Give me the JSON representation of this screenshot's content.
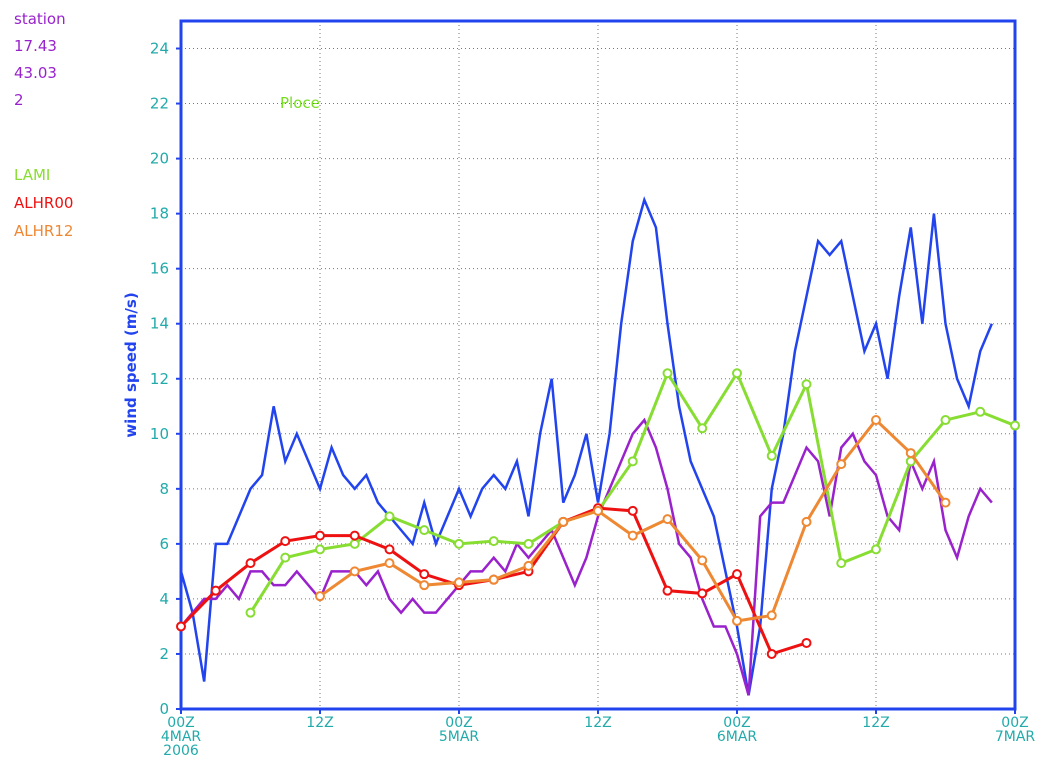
{
  "chart_data": {
    "type": "line",
    "title": "Ploce",
    "title_color": "#77dd22",
    "y_label": "wind speed (m/s)",
    "y_label_color": "#2244ee",
    "station_info": [
      "station",
      "17.43",
      "43.03",
      "2"
    ],
    "station_info_color": "#9922cc",
    "xlim": [
      0,
      72
    ],
    "xticks": [
      {
        "value": 0,
        "label": "00Z\n4MAR\n2006"
      },
      {
        "value": 12,
        "label": "12Z"
      },
      {
        "value": 24,
        "label": "00Z\n5MAR"
      },
      {
        "value": 36,
        "label": "12Z"
      },
      {
        "value": 48,
        "label": "00Z\n6MAR"
      },
      {
        "value": 60,
        "label": "12Z"
      },
      {
        "value": 72,
        "label": "00Z\n7MAR"
      }
    ],
    "ylim": [
      0,
      25
    ],
    "yticks": [
      0,
      2,
      4,
      6,
      8,
      10,
      12,
      14,
      16,
      18,
      20,
      22,
      24
    ],
    "grid": true,
    "series": [
      {
        "color": "#2244ee",
        "markers": false,
        "x": [
          0,
          1,
          2,
          3,
          4,
          5,
          6,
          7,
          8,
          9,
          10,
          11,
          12,
          13,
          14,
          15,
          16,
          17,
          18,
          19,
          20,
          21,
          22,
          23,
          24,
          25,
          26,
          27,
          28,
          29,
          30,
          31,
          32,
          33,
          34,
          35,
          36,
          37,
          38,
          39,
          40,
          41,
          42,
          43,
          44,
          45,
          46,
          47,
          48,
          49,
          50,
          51,
          52,
          53,
          54,
          55,
          56,
          57,
          58,
          59,
          60,
          61,
          62,
          63,
          64,
          65,
          66,
          67,
          68,
          69,
          70
        ],
        "values": [
          5,
          3.5,
          1,
          6,
          6,
          7,
          8,
          8.5,
          11,
          9,
          10,
          9,
          8,
          9.5,
          8.5,
          8,
          8.5,
          7.5,
          7,
          6.5,
          6,
          7.5,
          6,
          7,
          8,
          7,
          8,
          8.5,
          8,
          9,
          7,
          10,
          12,
          7.5,
          8.5,
          10,
          7.5,
          10,
          14,
          17,
          18.5,
          17.5,
          14,
          11,
          9,
          8,
          7,
          5,
          3,
          0.5,
          3,
          8,
          10,
          13,
          15,
          17,
          16.5,
          17,
          15,
          13,
          14,
          12,
          15,
          17.5,
          14,
          18,
          14,
          12,
          11,
          13,
          14
        ]
      },
      {
        "color": "#9922cc",
        "markers": false,
        "x": [
          0,
          1,
          2,
          3,
          4,
          5,
          6,
          7,
          8,
          9,
          10,
          11,
          12,
          13,
          14,
          15,
          16,
          17,
          18,
          19,
          20,
          21,
          22,
          23,
          24,
          25,
          26,
          27,
          28,
          29,
          30,
          31,
          32,
          33,
          34,
          35,
          36,
          37,
          38,
          39,
          40,
          41,
          42,
          43,
          44,
          45,
          46,
          47,
          48,
          49,
          50,
          51,
          52,
          53,
          54,
          55,
          56,
          57,
          58,
          59,
          60,
          61,
          62,
          63,
          64,
          65,
          66,
          67,
          68,
          69,
          70
        ],
        "values": [
          3,
          3.5,
          4,
          4,
          4.5,
          4,
          5,
          5,
          4.5,
          4.5,
          5,
          4.5,
          4,
          5,
          5,
          5,
          4.5,
          5,
          4,
          3.5,
          4,
          3.5,
          3.5,
          4,
          4.5,
          5,
          5,
          5.5,
          5,
          6,
          5.5,
          6,
          6.5,
          5.5,
          4.5,
          5.5,
          7,
          8,
          9,
          10,
          10.5,
          9.5,
          8,
          6,
          5.5,
          4,
          3,
          3,
          2,
          0.5,
          7,
          7.5,
          7.5,
          8.5,
          9.5,
          9,
          7,
          9.5,
          10,
          9,
          8.5,
          7,
          6.5,
          9,
          8,
          9,
          6.5,
          5.5,
          7,
          8,
          7.5
        ]
      },
      {
        "name": "LAMI",
        "color": "#88dd33",
        "markers": true,
        "x": [
          6,
          9,
          12,
          15,
          18,
          21,
          24,
          27,
          30,
          33,
          36,
          39,
          42,
          45,
          48,
          51,
          54,
          57,
          60,
          63,
          66,
          69,
          72
        ],
        "values": [
          3.5,
          5.5,
          5.8,
          6,
          7,
          6.5,
          6,
          6.1,
          6,
          6.8,
          7.2,
          9,
          12.2,
          10.2,
          12.2,
          9.2,
          11.8,
          5.3,
          5.8,
          9,
          10.5,
          10.8,
          10.3
        ]
      },
      {
        "name": "ALHR00",
        "color": "#ee1111",
        "markers": true,
        "x": [
          0,
          3,
          6,
          9,
          12,
          15,
          18,
          21,
          24,
          27,
          30,
          33,
          36,
          39,
          42,
          45,
          48,
          51,
          54
        ],
        "values": [
          3,
          4.3,
          5.3,
          6.1,
          6.3,
          6.3,
          5.8,
          4.9,
          4.5,
          4.7,
          5,
          6.8,
          7.3,
          7.2,
          4.3,
          4.2,
          4.9,
          2,
          2.4
        ]
      },
      {
        "name": "ALHR12",
        "color": "#ee8833",
        "markers": true,
        "x": [
          12,
          15,
          18,
          21,
          24,
          27,
          30,
          33,
          36,
          39,
          42,
          45,
          48,
          51,
          54,
          57,
          60,
          63,
          66
        ],
        "values": [
          4.1,
          5,
          5.3,
          4.5,
          4.6,
          4.7,
          5.2,
          6.8,
          7.2,
          6.3,
          6.9,
          5.4,
          3.2,
          3.4,
          6.8,
          8.9,
          10.5,
          9.3,
          7.5
        ]
      }
    ],
    "tick_color": "#22aaaa",
    "frame_color": "#2244ee"
  }
}
